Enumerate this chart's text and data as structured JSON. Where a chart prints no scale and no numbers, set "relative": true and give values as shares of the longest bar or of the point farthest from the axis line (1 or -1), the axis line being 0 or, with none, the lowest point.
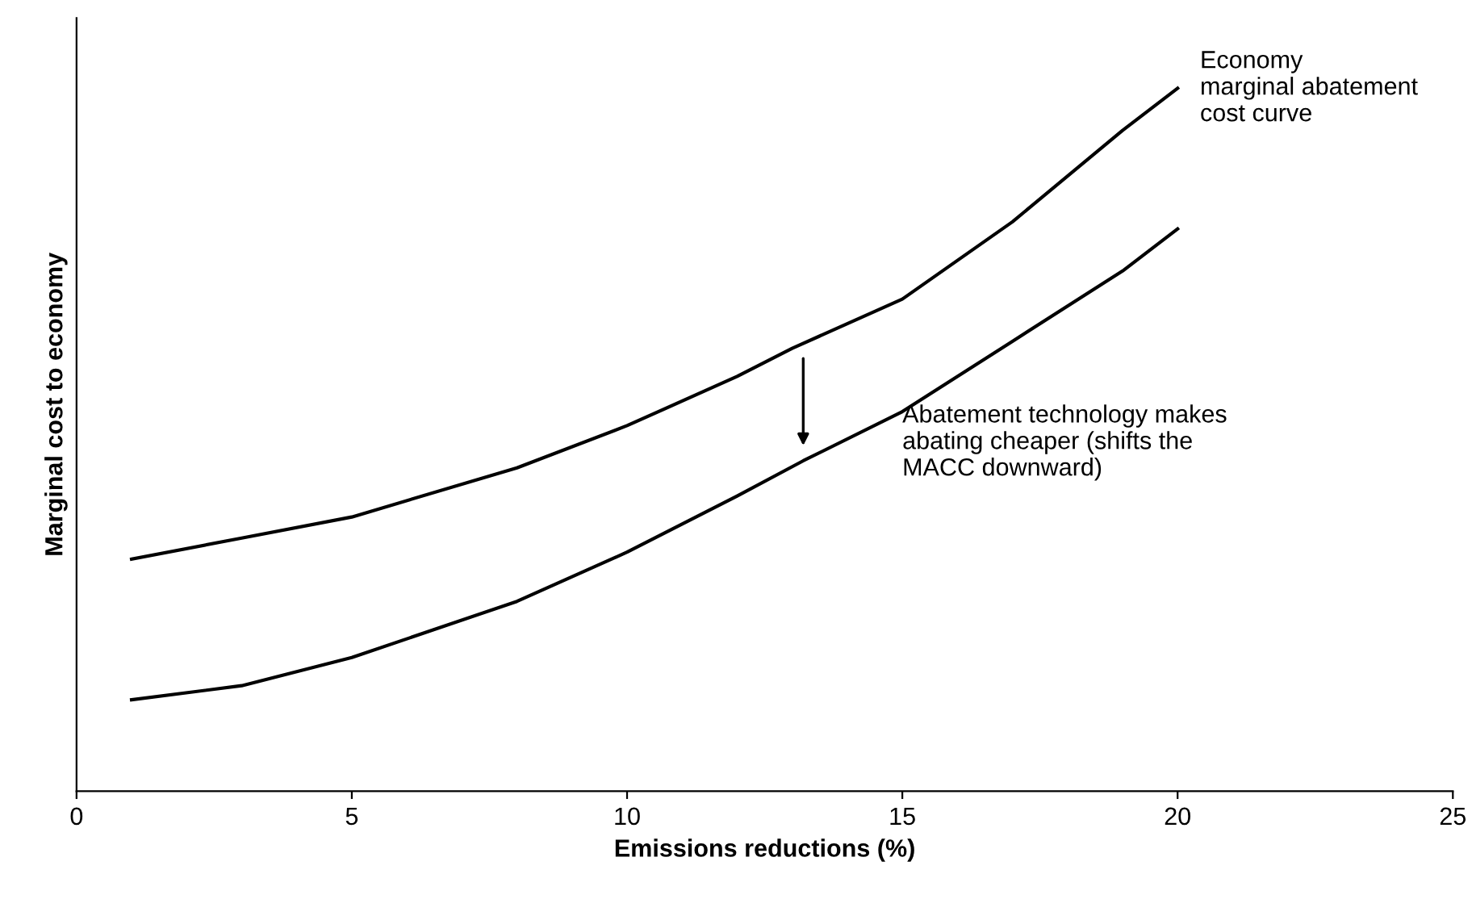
{
  "chart_data": {
    "type": "line",
    "relative": true,
    "xlabel": "Emissions reductions (%)",
    "ylabel": "Marginal cost to economy",
    "xlim": [
      0,
      25
    ],
    "xticks": [
      0,
      5,
      10,
      15,
      20,
      25
    ],
    "grid": false,
    "legend": false,
    "marker": "none",
    "line_style": "solid",
    "series": [
      {
        "color": "#000000",
        "x": [
          1,
          3,
          5,
          8,
          10,
          12,
          13,
          15,
          17,
          19,
          20
        ],
        "values": [
          0.33,
          0.36,
          0.39,
          0.46,
          0.52,
          0.59,
          0.63,
          0.7,
          0.81,
          0.94,
          1.0
        ]
      },
      {
        "color": "#000000",
        "x": [
          1,
          3,
          5,
          8,
          10,
          12,
          13.2,
          15,
          17,
          19,
          20
        ],
        "values": [
          0.13,
          0.15,
          0.19,
          0.27,
          0.34,
          0.42,
          0.47,
          0.54,
          0.64,
          0.74,
          0.8
        ]
      }
    ],
    "annotations": [
      {
        "text": "Economy\nmarginal abatement\ncost curve",
        "x": 20,
        "y": 1.0
      },
      "Abatement technology makes\nabating cheaper (shifts the\nMACC downward)"
    ]
  }
}
